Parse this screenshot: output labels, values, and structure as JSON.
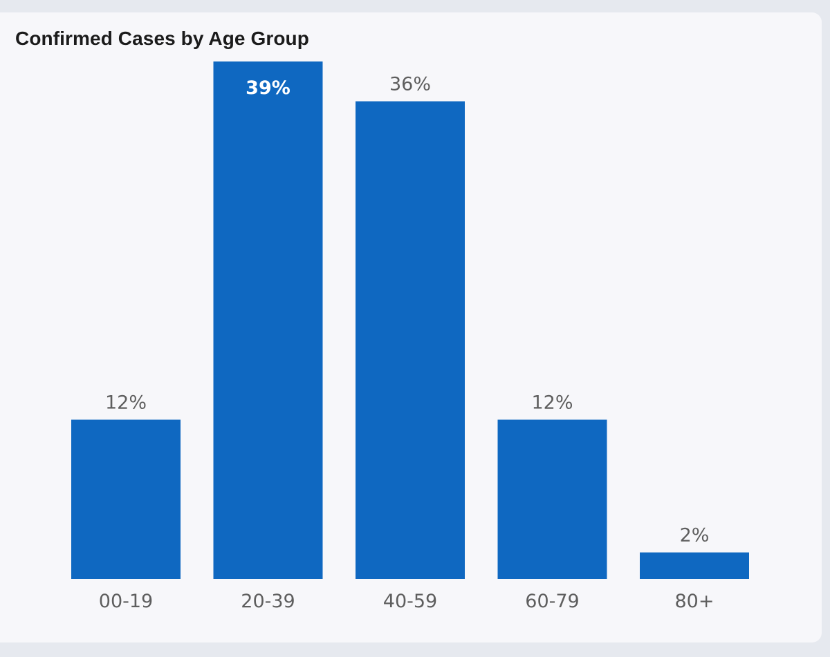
{
  "chart_data": {
    "type": "bar",
    "title": "Confirmed Cases by Age Group",
    "categories": [
      "00-19",
      "20-39",
      "40-59",
      "60-79",
      "80+"
    ],
    "values": [
      12,
      39,
      36,
      12,
      2
    ],
    "data_labels": [
      "12%",
      "39%",
      "36%",
      "12%",
      "2%"
    ],
    "ylim": [
      0,
      39
    ],
    "grid": false,
    "legend": "none",
    "xlabel": "",
    "ylabel": "",
    "bar_color": "#0f68c1",
    "label_color": "#5e5e5e",
    "inside_label_color": "#ffffff"
  }
}
